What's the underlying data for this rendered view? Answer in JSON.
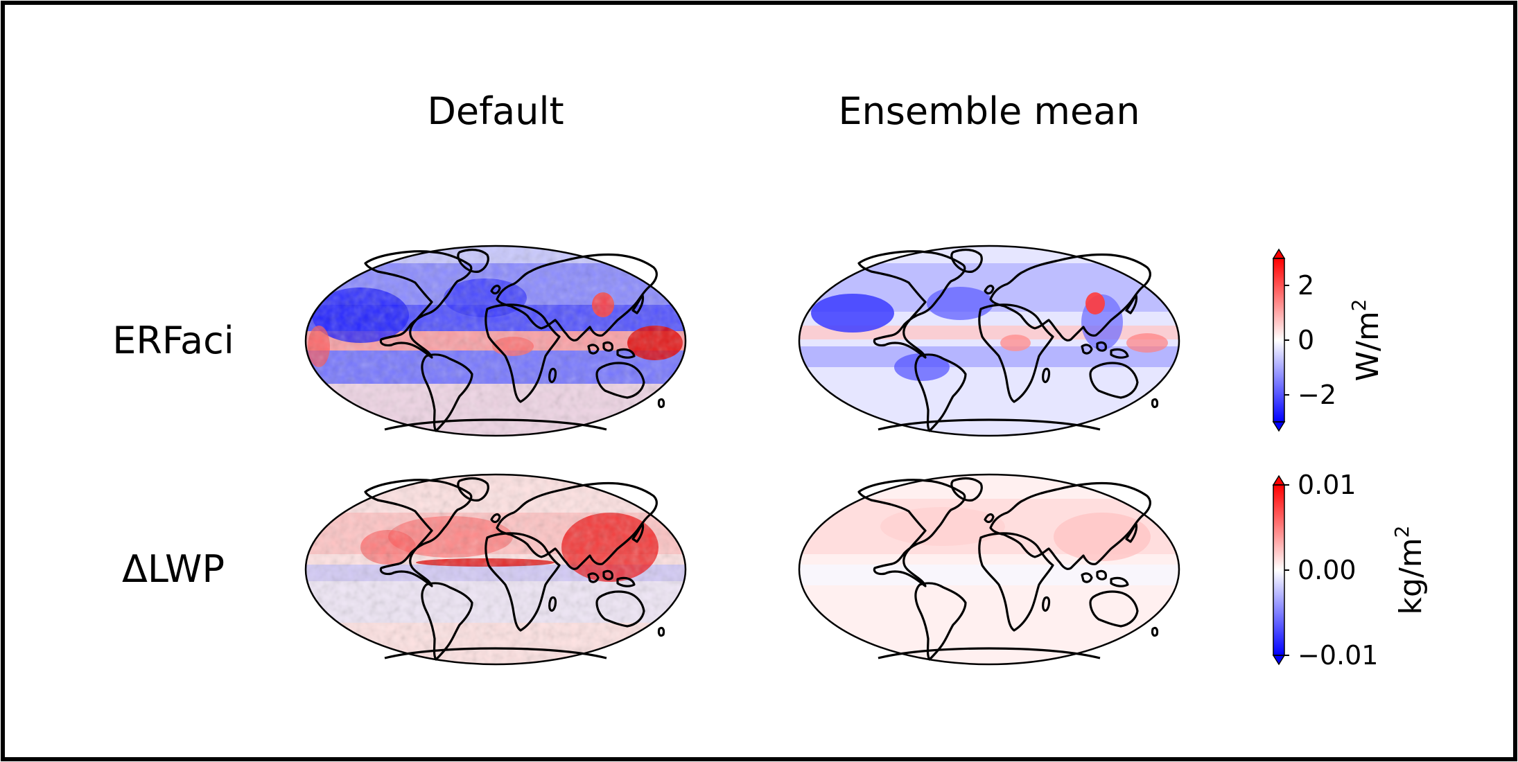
{
  "columns": [
    {
      "title": "Default"
    },
    {
      "title": "Ensemble mean"
    }
  ],
  "rows": [
    {
      "label": "ERFaci"
    },
    {
      "label": "ΔLWP"
    }
  ],
  "colorbars": [
    {
      "unit": "W/m",
      "unit_exp": "2",
      "ticks": [
        "2",
        "0",
        "−2"
      ],
      "tick_values": [
        2,
        0,
        -2
      ],
      "range": [
        -3,
        3
      ],
      "colormap": "bwr",
      "extend": "both"
    },
    {
      "unit": "kg/m",
      "unit_exp": "2",
      "ticks": [
        "0.01",
        "0.00",
        "−0.01"
      ],
      "tick_values": [
        0.01,
        0.0,
        -0.01
      ],
      "range": [
        -0.01,
        0.01
      ],
      "colormap": "bwr",
      "extend": "both"
    }
  ],
  "colors": {
    "negative": "#0000ff",
    "neutral": "#ffffff",
    "positive": "#ff0000",
    "border": "#000000"
  },
  "projection": "mollweide"
}
